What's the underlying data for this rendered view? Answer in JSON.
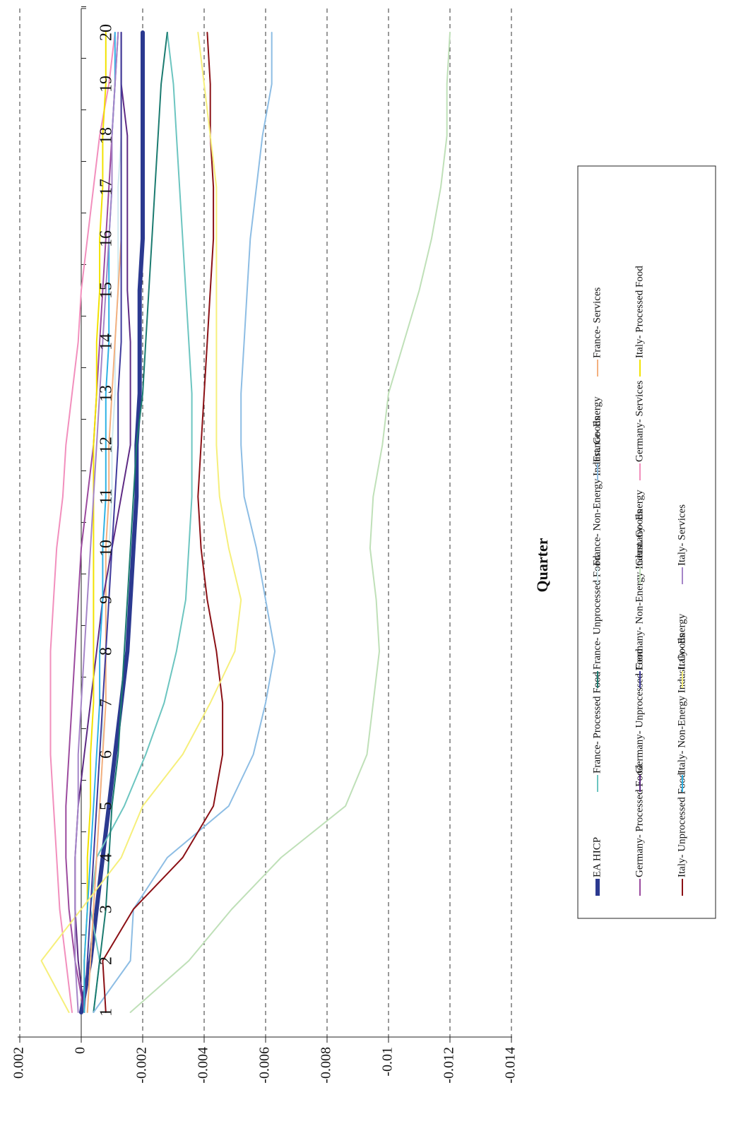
{
  "chart_data": {
    "type": "line",
    "orientation": "rotated 90 degrees clockwise (value axis along the bottom, quarters running vertically)",
    "xlabel": "Quarter",
    "ylabel": "",
    "x": [
      1,
      2,
      3,
      4,
      5,
      6,
      7,
      8,
      9,
      10,
      11,
      12,
      13,
      14,
      15,
      16,
      17,
      18,
      19,
      20
    ],
    "ylim": [
      0.002,
      -0.014
    ],
    "y_ticks": [
      0.002,
      0,
      -0.002,
      -0.004,
      -0.006,
      -0.008,
      -0.01,
      -0.012,
      -0.014
    ],
    "y_tick_labels": [
      "0.002",
      "0",
      "-0.002",
      "-0.004",
      "-0.006",
      "-0.008",
      "-0.01",
      "-0.012",
      "-0.014"
    ],
    "grid": "dashed horizontal gridlines at every value tick",
    "legend_position": "right side of page, three columns",
    "series": [
      {
        "name": "EA HICP",
        "color": "#2b3990",
        "width": 6,
        "values": [
          0,
          -0.0003,
          -0.0005,
          -0.0007,
          -0.0009,
          -0.0011,
          -0.0013,
          -0.0015,
          -0.0016,
          -0.0017,
          -0.0018,
          -0.0018,
          -0.0019,
          -0.0019,
          -0.0019,
          -0.002,
          -0.002,
          -0.002,
          -0.002,
          -0.002
        ]
      },
      {
        "name": "France- Processed Food",
        "color": "#6cc5c0",
        "width": 2,
        "values": [
          -0.0004,
          -0.0006,
          -0.0003,
          -0.0005,
          -0.0014,
          -0.0021,
          -0.0027,
          -0.0031,
          -0.0034,
          -0.0035,
          -0.0036,
          -0.0036,
          -0.0036,
          -0.0035,
          -0.0034,
          -0.0033,
          -0.0032,
          -0.0031,
          -0.003,
          -0.0028
        ]
      },
      {
        "name": "France- Unprocessed Food",
        "color": "#1b7b70",
        "width": 2,
        "values": [
          -0.0004,
          -0.0006,
          -0.0008,
          -0.0009,
          -0.001,
          -0.0012,
          -0.0013,
          -0.0014,
          -0.0015,
          -0.0016,
          -0.0017,
          -0.0018,
          -0.002,
          -0.0021,
          -0.0022,
          -0.0023,
          -0.0024,
          -0.0025,
          -0.0026,
          -0.0028
        ]
      },
      {
        "name": "France- Non-Energy Indust. Goods",
        "color": "#cfe9ef",
        "width": 2,
        "values": [
          -0.0002,
          -0.0003,
          -0.0004,
          -0.0005,
          -0.0006,
          -0.0007,
          -0.0007,
          -0.0008,
          -0.0009,
          -0.0009,
          -0.001,
          -0.001,
          -0.0011,
          -0.0011,
          -0.0012,
          -0.0012,
          -0.0012,
          -0.0013,
          -0.0013,
          -0.0013
        ]
      },
      {
        "name": "France- Energy",
        "color": "#8dbde4",
        "width": 2,
        "values": [
          -0.0004,
          -0.0016,
          -0.0017,
          -0.0028,
          -0.0048,
          -0.0056,
          -0.006,
          -0.0063,
          -0.006,
          -0.0057,
          -0.0053,
          -0.0052,
          -0.0052,
          -0.0053,
          -0.0054,
          -0.0055,
          -0.0057,
          -0.0059,
          -0.0062,
          -0.0062
        ]
      },
      {
        "name": "France- Services",
        "color": "#f4b07f",
        "width": 2,
        "values": [
          -0.0002,
          -0.0003,
          -0.0004,
          -0.0005,
          -0.0006,
          -0.0007,
          -0.0008,
          -0.0008,
          -0.0008,
          -0.0008,
          -0.0009,
          -0.0009,
          -0.001,
          -0.0011,
          -0.0012,
          -0.0013,
          -0.0013,
          -0.0013,
          -0.0013,
          -0.0013
        ]
      },
      {
        "name": "Germany- Processed Food",
        "color": "#9b4a9e",
        "width": 2,
        "values": [
          -0.0001,
          0.0002,
          0.0004,
          0.0005,
          0.0005,
          0.0004,
          0.0003,
          0.0002,
          0.0001,
          0.0,
          -0.0002,
          -0.0004,
          -0.0005,
          -0.0006,
          -0.0007,
          -0.0008,
          -0.0009,
          -0.001,
          -0.0011,
          -0.0012
        ]
      },
      {
        "name": "Germany- Unprocessed Food",
        "color": "#5e2a84",
        "width": 2,
        "values": [
          -0.0001,
          0.0001,
          0.0002,
          0.0002,
          0.0001,
          -0.0001,
          -0.0003,
          -0.0005,
          -0.0007,
          -0.001,
          -0.0013,
          -0.0016,
          -0.0016,
          -0.0016,
          -0.0015,
          -0.0015,
          -0.0015,
          -0.0015,
          -0.0013,
          -0.0013
        ]
      },
      {
        "name": "Germany- Non-Energy Indust. Goods",
        "color": "#3f3a9c",
        "width": 2,
        "values": [
          -0.0001,
          -0.0002,
          -0.0003,
          -0.0004,
          -0.0005,
          -0.0006,
          -0.0007,
          -0.0008,
          -0.0009,
          -0.001,
          -0.0011,
          -0.0012,
          -0.0012,
          -0.0013,
          -0.0013,
          -0.0013,
          -0.0013,
          -0.0013,
          -0.0013,
          -0.0013
        ]
      },
      {
        "name": "Germany- Energy",
        "color": "#bfe0b8",
        "width": 2,
        "values": [
          -0.0016,
          -0.0035,
          -0.0049,
          -0.0065,
          -0.0086,
          -0.0093,
          -0.0095,
          -0.0097,
          -0.0096,
          -0.0094,
          -0.0095,
          -0.0098,
          -0.01,
          -0.0105,
          -0.011,
          -0.0114,
          -0.0117,
          -0.0119,
          -0.0119,
          -0.012
        ]
      },
      {
        "name": "Germany- Services",
        "color": "#f28fbd",
        "width": 2,
        "values": [
          0.0003,
          0.0005,
          0.0007,
          0.0008,
          0.0009,
          0.001,
          0.001,
          0.001,
          0.0009,
          0.0008,
          0.0006,
          0.0005,
          0.0003,
          0.0001,
          0.0,
          -0.0002,
          -0.0004,
          -0.0006,
          -0.0009,
          -0.0011
        ]
      },
      {
        "name": "Italy- Processed Food",
        "color": "#f2e200",
        "width": 2,
        "values": [
          -0.0001,
          -0.0001,
          -0.0002,
          -0.0002,
          -0.0003,
          -0.0003,
          -0.0004,
          -0.0004,
          -0.0004,
          -0.0004,
          -0.0004,
          -0.0004,
          -0.0005,
          -0.0005,
          -0.0006,
          -0.0006,
          -0.0007,
          -0.0007,
          -0.0008,
          -0.0008
        ]
      },
      {
        "name": "Italy- Unprocessed Food",
        "color": "#8b1015",
        "width": 2,
        "values": [
          -0.0008,
          -0.0007,
          -0.0017,
          -0.0033,
          -0.0043,
          -0.0046,
          -0.0046,
          -0.0044,
          -0.0041,
          -0.0039,
          -0.0038,
          -0.0039,
          -0.004,
          -0.0041,
          -0.0042,
          -0.0043,
          -0.0043,
          -0.0042,
          -0.0042,
          -0.0041
        ]
      },
      {
        "name": "Italy- Non-Energy Indust. Goods",
        "color": "#2fb2e5",
        "width": 2,
        "values": [
          -0.0001,
          -0.0001,
          -0.0002,
          -0.0003,
          -0.0004,
          -0.0005,
          -0.0006,
          -0.0006,
          -0.0007,
          -0.0007,
          -0.0008,
          -0.0008,
          -0.0008,
          -0.0009,
          -0.0009,
          -0.0009,
          -0.001,
          -0.001,
          -0.0011,
          -0.0011
        ]
      },
      {
        "name": "Italy- Energy",
        "color": "#f6ef7b",
        "width": 2,
        "values": [
          0.0004,
          0.0013,
          0.0,
          -0.0013,
          -0.002,
          -0.0033,
          -0.0042,
          -0.005,
          -0.0052,
          -0.0048,
          -0.0045,
          -0.0044,
          -0.0044,
          -0.0044,
          -0.0044,
          -0.0044,
          -0.0044,
          -0.0042,
          -0.004,
          -0.0038
        ]
      },
      {
        "name": "Italy- Services",
        "color": "#a585c8",
        "width": 2,
        "values": [
          0.0001,
          0.0002,
          0.0002,
          0.0002,
          0.0001,
          0.0001,
          0.0,
          -0.0001,
          -0.0002,
          -0.0003,
          -0.0004,
          -0.0005,
          -0.0006,
          -0.0007,
          -0.0008,
          -0.0009,
          -0.001,
          -0.001,
          -0.0011,
          -0.0012
        ]
      }
    ]
  }
}
